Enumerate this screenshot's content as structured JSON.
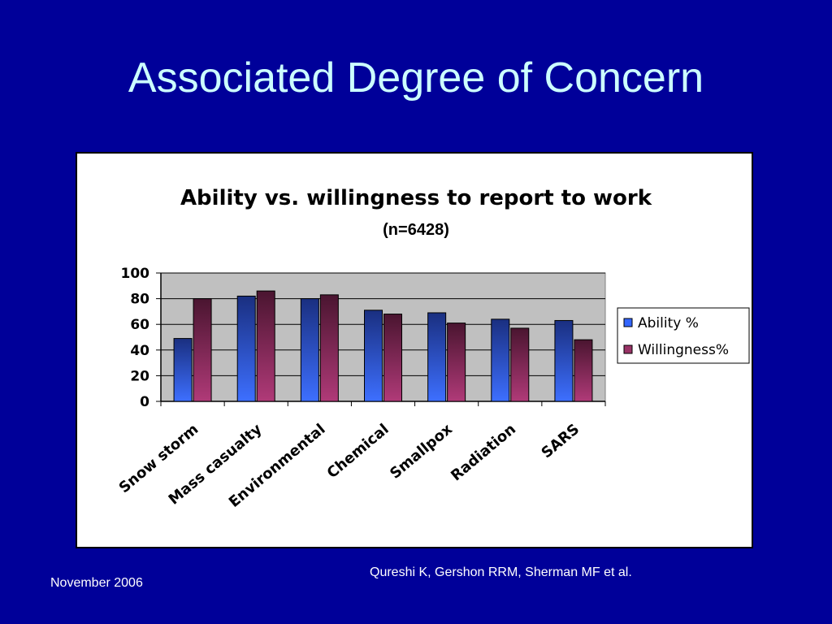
{
  "slide": {
    "title": "Associated Degree of Concern",
    "footer_left": "November 2006",
    "footer_right": "Qureshi K, Gershon RRM, Sherman MF et al."
  },
  "colors": {
    "background": "#000099",
    "title": "#ccffff",
    "plot_area": "#c0c0c0",
    "ability": "#3366ff",
    "willingness": "#993366"
  },
  "chart_data": {
    "type": "bar",
    "title": "Ability vs. willingness to report to work",
    "subtitle": "(n=6428)",
    "categories": [
      "Snow storm",
      "Mass casualty",
      "Environmental",
      "Chemical",
      "Smallpox",
      "Radiation",
      "SARS"
    ],
    "series": [
      {
        "name": "Ability %",
        "values": [
          49,
          82,
          80,
          71,
          69,
          64,
          63
        ]
      },
      {
        "name": "Willingness%",
        "values": [
          80,
          86,
          83,
          68,
          61,
          57,
          48
        ]
      }
    ],
    "ylim": [
      0,
      100
    ],
    "yticks": [
      "0",
      "20",
      "40",
      "60",
      "80",
      "100"
    ],
    "grid": true,
    "legend": "right"
  }
}
